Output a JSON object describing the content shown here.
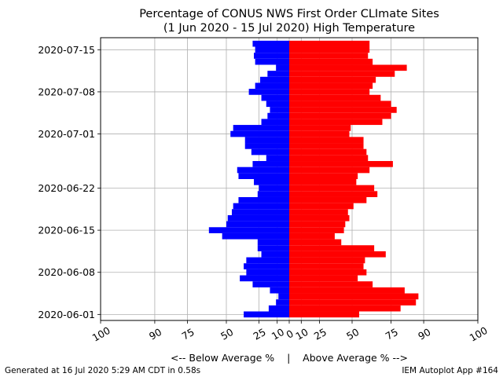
{
  "chart_data": {
    "type": "bar",
    "orientation": "horizontal",
    "title_line1": "Percentage of CONUS NWS First Order CLImate Sites",
    "title_line2": "(1 Jun 2020 - 15 Jul 2020) High Temperature",
    "xlabel": "<-- Below Average %    |    Above Average % -->",
    "x_ticks": [
      {
        "value": -100,
        "label": "100"
      },
      {
        "value": -90,
        "label": "90"
      },
      {
        "value": -75,
        "label": "75"
      },
      {
        "value": -50,
        "label": "50"
      },
      {
        "value": -25,
        "label": "25"
      },
      {
        "value": -10,
        "label": "10"
      },
      {
        "value": 0,
        "label": "0"
      },
      {
        "value": 10,
        "label": "10"
      },
      {
        "value": 25,
        "label": "25"
      },
      {
        "value": 50,
        "label": "50"
      },
      {
        "value": 75,
        "label": "75"
      },
      {
        "value": 90,
        "label": "90"
      },
      {
        "value": 100,
        "label": "100"
      }
    ],
    "x_scale": "arcsine-like (compressed near the ends)",
    "xlim": [
      -100,
      100
    ],
    "y_ticks": [
      "2020-06-01",
      "2020-06-08",
      "2020-06-15",
      "2020-06-22",
      "2020-07-01",
      "2020-07-08",
      "2020-07-15"
    ],
    "ylim": [
      "2020-05-31",
      "2020-07-17"
    ],
    "grid": true,
    "series": [
      {
        "name": "below",
        "color": "#0000ff",
        "points": [
          {
            "date": "2020-06-01",
            "value": 37
          },
          {
            "date": "2020-06-02",
            "value": 17
          },
          {
            "date": "2020-06-03",
            "value": 11
          },
          {
            "date": "2020-06-04",
            "value": 9
          },
          {
            "date": "2020-06-05",
            "value": 16
          },
          {
            "date": "2020-06-06",
            "value": 30
          },
          {
            "date": "2020-06-07",
            "value": 40
          },
          {
            "date": "2020-06-08",
            "value": 35
          },
          {
            "date": "2020-06-09",
            "value": 37
          },
          {
            "date": "2020-06-10",
            "value": 35
          },
          {
            "date": "2020-06-11",
            "value": 23
          },
          {
            "date": "2020-06-12",
            "value": 26
          },
          {
            "date": "2020-06-13",
            "value": 26
          },
          {
            "date": "2020-06-14",
            "value": 53
          },
          {
            "date": "2020-06-15",
            "value": 62
          },
          {
            "date": "2020-06-16",
            "value": 50
          },
          {
            "date": "2020-06-17",
            "value": 49
          },
          {
            "date": "2020-06-18",
            "value": 46
          },
          {
            "date": "2020-06-19",
            "value": 45
          },
          {
            "date": "2020-06-20",
            "value": 41
          },
          {
            "date": "2020-06-21",
            "value": 26
          },
          {
            "date": "2020-06-22",
            "value": 25
          },
          {
            "date": "2020-06-23",
            "value": 29
          },
          {
            "date": "2020-06-24",
            "value": 41
          },
          {
            "date": "2020-06-25",
            "value": 42
          },
          {
            "date": "2020-06-26",
            "value": 30
          },
          {
            "date": "2020-06-27",
            "value": 19
          },
          {
            "date": "2020-06-28",
            "value": 31
          },
          {
            "date": "2020-06-29",
            "value": 36
          },
          {
            "date": "2020-06-30",
            "value": 36
          },
          {
            "date": "2020-07-01",
            "value": 47
          },
          {
            "date": "2020-07-02",
            "value": 45
          },
          {
            "date": "2020-07-03",
            "value": 23
          },
          {
            "date": "2020-07-04",
            "value": 18
          },
          {
            "date": "2020-07-05",
            "value": 16
          },
          {
            "date": "2020-07-06",
            "value": 19
          },
          {
            "date": "2020-07-07",
            "value": 23
          },
          {
            "date": "2020-07-08",
            "value": 33
          },
          {
            "date": "2020-07-09",
            "value": 28
          },
          {
            "date": "2020-07-10",
            "value": 24
          },
          {
            "date": "2020-07-11",
            "value": 18
          },
          {
            "date": "2020-07-12",
            "value": 11
          },
          {
            "date": "2020-07-13",
            "value": 28
          },
          {
            "date": "2020-07-14",
            "value": 29
          },
          {
            "date": "2020-07-15",
            "value": 28
          },
          {
            "date": "2020-07-16",
            "value": 30
          }
        ]
      },
      {
        "name": "above",
        "color": "#ff0000",
        "points": [
          {
            "date": "2020-06-01",
            "value": 55
          },
          {
            "date": "2020-06-02",
            "value": 80
          },
          {
            "date": "2020-06-03",
            "value": 87
          },
          {
            "date": "2020-06-04",
            "value": 88
          },
          {
            "date": "2020-06-05",
            "value": 82
          },
          {
            "date": "2020-06-06",
            "value": 64
          },
          {
            "date": "2020-06-07",
            "value": 54
          },
          {
            "date": "2020-06-08",
            "value": 60
          },
          {
            "date": "2020-06-09",
            "value": 58
          },
          {
            "date": "2020-06-10",
            "value": 59
          },
          {
            "date": "2020-06-11",
            "value": 72
          },
          {
            "date": "2020-06-12",
            "value": 65
          },
          {
            "date": "2020-06-13",
            "value": 42
          },
          {
            "date": "2020-06-14",
            "value": 37
          },
          {
            "date": "2020-06-15",
            "value": 44
          },
          {
            "date": "2020-06-16",
            "value": 45
          },
          {
            "date": "2020-06-17",
            "value": 48
          },
          {
            "date": "2020-06-18",
            "value": 47
          },
          {
            "date": "2020-06-19",
            "value": 51
          },
          {
            "date": "2020-06-20",
            "value": 60
          },
          {
            "date": "2020-06-21",
            "value": 67
          },
          {
            "date": "2020-06-22",
            "value": 65
          },
          {
            "date": "2020-06-23",
            "value": 53
          },
          {
            "date": "2020-06-24",
            "value": 54
          },
          {
            "date": "2020-06-25",
            "value": 62
          },
          {
            "date": "2020-06-26",
            "value": 76
          },
          {
            "date": "2020-06-27",
            "value": 61
          },
          {
            "date": "2020-06-28",
            "value": 60
          },
          {
            "date": "2020-06-29",
            "value": 58
          },
          {
            "date": "2020-06-30",
            "value": 58
          },
          {
            "date": "2020-07-01",
            "value": 48
          },
          {
            "date": "2020-07-02",
            "value": 49
          },
          {
            "date": "2020-07-03",
            "value": 70
          },
          {
            "date": "2020-07-04",
            "value": 75
          },
          {
            "date": "2020-07-05",
            "value": 78
          },
          {
            "date": "2020-07-06",
            "value": 75
          },
          {
            "date": "2020-07-07",
            "value": 69
          },
          {
            "date": "2020-07-08",
            "value": 62
          },
          {
            "date": "2020-07-09",
            "value": 64
          },
          {
            "date": "2020-07-10",
            "value": 66
          },
          {
            "date": "2020-07-11",
            "value": 77
          },
          {
            "date": "2020-07-12",
            "value": 83
          },
          {
            "date": "2020-07-13",
            "value": 64
          },
          {
            "date": "2020-07-14",
            "value": 61
          },
          {
            "date": "2020-07-15",
            "value": 62
          },
          {
            "date": "2020-07-16",
            "value": 62
          }
        ]
      }
    ]
  },
  "footer": {
    "generated": "Generated at 16 Jul 2020 5:29 AM CDT in 0.58s",
    "app": "IEM Autoplot App #164"
  }
}
